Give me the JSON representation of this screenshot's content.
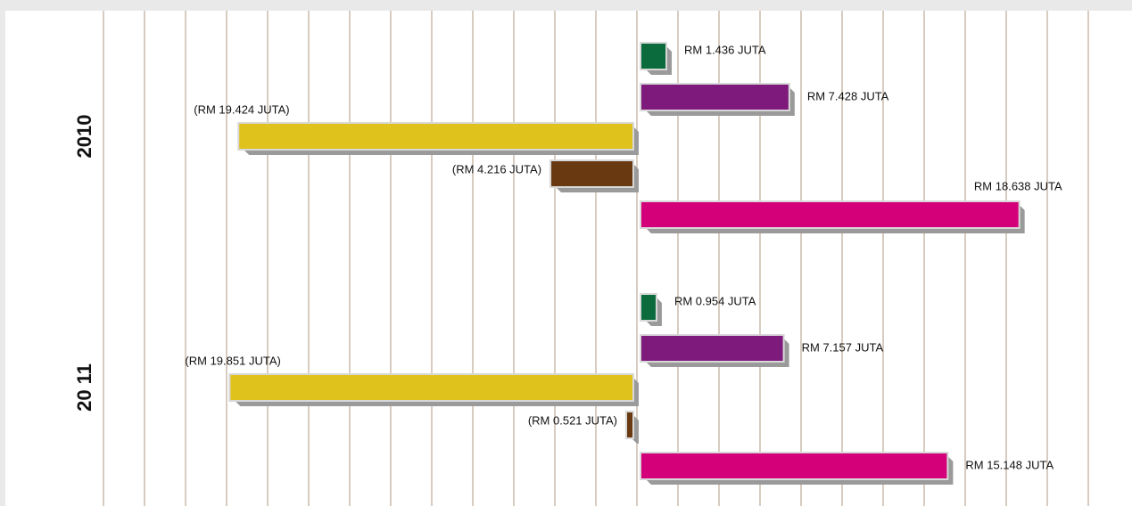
{
  "chart_data": {
    "type": "bar",
    "orientation": "horizontal",
    "categories": [
      "2010",
      "20 11"
    ],
    "series": [
      {
        "color": "#0b6b3c",
        "values": [
          1.436,
          0.954
        ],
        "value_labels": [
          "RM 1.436 JUTA",
          "RM 0.954 JUTA"
        ]
      },
      {
        "color": "#7e1a7c",
        "values": [
          7.428,
          7.157
        ],
        "value_labels": [
          "RM 7.428 JUTA",
          "RM 7.157 JUTA"
        ]
      },
      {
        "color": "#e0c21c",
        "values": [
          -19.424,
          -19.851
        ],
        "value_labels": [
          "(RM 19.424 JUTA)",
          "(RM 19.851 JUTA)"
        ]
      },
      {
        "color": "#693a12",
        "values": [
          -4.216,
          -0.521
        ],
        "value_labels": [
          "(RM 4.216 JUTA)",
          "(RM 0.521 JUTA)"
        ]
      },
      {
        "color": "#d4007a",
        "values": [
          18.638,
          15.148
        ],
        "value_labels": [
          "RM 18.638 JUTA",
          "RM 15.148 JUTA"
        ]
      }
    ],
    "xlim": [
      -26,
      22
    ],
    "xticks": [
      -26,
      -24,
      -22,
      -20,
      -18,
      -16,
      -14,
      -12,
      -10,
      -8,
      -6,
      -4,
      -2,
      0,
      2,
      4,
      6,
      8,
      10,
      12,
      14,
      16,
      18,
      20,
      22
    ],
    "grid": true
  }
}
